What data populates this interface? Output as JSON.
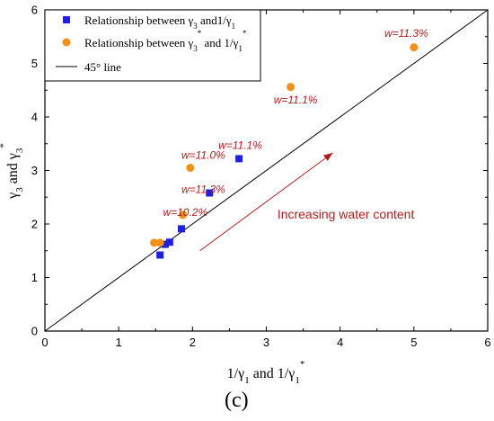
{
  "chart_data": {
    "type": "scatter",
    "xlabel": "1/γ1 and 1/γ1*",
    "ylabel": "γ3 and γ3*",
    "xlim": [
      0,
      6
    ],
    "ylim": [
      0,
      6
    ],
    "xticks": [
      "0",
      "1",
      "2",
      "3",
      "4",
      "5",
      "6"
    ],
    "yticks": [
      "0",
      "1",
      "2",
      "3",
      "4",
      "5",
      "6"
    ],
    "grid": false,
    "legend_position": "top-left",
    "series": [
      {
        "name": "Relationship between γ3 and 1/γ1",
        "marker": "square",
        "color": "#1f1fdc",
        "points": [
          {
            "x": 1.56,
            "y": 1.42
          },
          {
            "x": 1.63,
            "y": 1.62
          },
          {
            "x": 1.69,
            "y": 1.66
          },
          {
            "x": 1.85,
            "y": 1.91
          },
          {
            "x": 2.23,
            "y": 2.58
          },
          {
            "x": 2.63,
            "y": 3.22
          }
        ]
      },
      {
        "name": "Relationship between γ3* and 1/γ1*",
        "marker": "circle",
        "color": "#f39019",
        "points": [
          {
            "x": 1.48,
            "y": 1.65
          },
          {
            "x": 1.56,
            "y": 1.65
          },
          {
            "x": 1.87,
            "y": 2.17
          },
          {
            "x": 1.97,
            "y": 3.05
          },
          {
            "x": 3.33,
            "y": 4.56
          },
          {
            "x": 5.0,
            "y": 5.3
          }
        ]
      },
      {
        "name": "45° line",
        "type": "line",
        "color": "#000000",
        "points": [
          {
            "x": 0,
            "y": 0
          },
          {
            "x": 6,
            "y": 6
          }
        ]
      }
    ],
    "annotations": [
      {
        "text": "w=11.3%",
        "x": 4.6,
        "y": 5.5
      },
      {
        "text": "w=11.1%",
        "x": 3.1,
        "y": 4.25
      },
      {
        "text": "w=11.1%",
        "x": 2.35,
        "y": 3.4
      },
      {
        "text": "w=11.0%",
        "x": 1.85,
        "y": 3.22
      },
      {
        "text": "w=11.3%",
        "x": 1.85,
        "y": 2.58
      },
      {
        "text": "w=10.2%",
        "x": 1.6,
        "y": 2.15
      }
    ],
    "arrow": {
      "text": "Increasing water content",
      "from": {
        "x": 2.1,
        "y": 1.5
      },
      "to": {
        "x": 3.9,
        "y": 3.33
      },
      "color": "#b01c1c"
    }
  },
  "panel_label": "(c)"
}
